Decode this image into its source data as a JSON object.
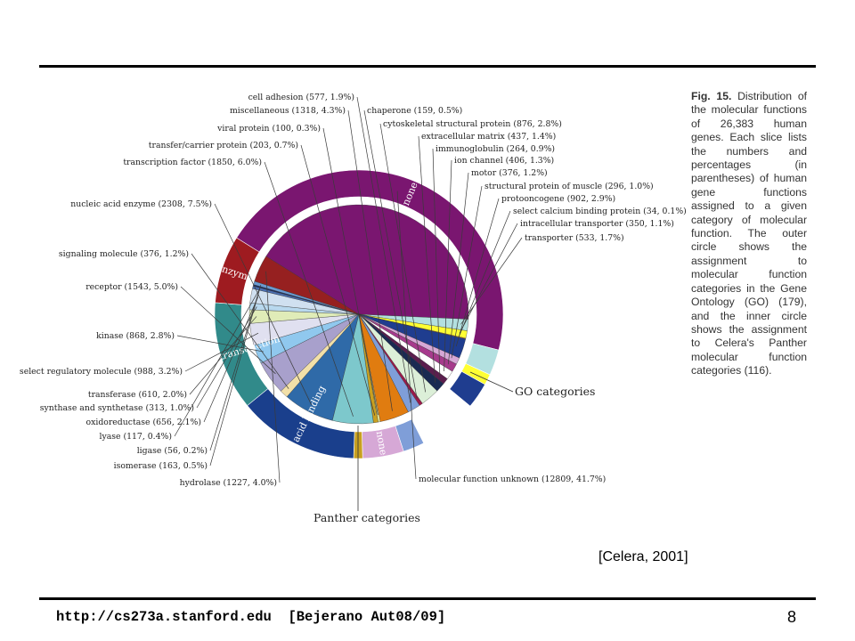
{
  "slide": {
    "caption_fig": "Fig. 15.",
    "caption_text": "Distribution of the molecular functions of 26,383 human genes. Each slice lists the numbers and percentages (in parentheses) of human gene functions assigned to a given category of molecular function. The outer circle shows the assignment to molecular function categories in the Gene Ontology (GO) (179), and the inner circle shows the assignment to Celera's Panther molecular function categories (116).",
    "citation": "[Celera, 2001]",
    "footer": "http://cs273a.stanford.edu  [Bejerano Aut08/09]",
    "page_number": "8"
  },
  "chart_data": {
    "type": "pie",
    "total_genes": 26383,
    "annotations": [
      "GO categories",
      "Panther categories"
    ],
    "slices": [
      {
        "label": "molecular function unknown (12809, 41.7%)",
        "value": 12809,
        "percent": 41.7,
        "color": "#7a1670"
      },
      {
        "label": "transporter (533, 1.7%)",
        "value": 533,
        "percent": 1.7,
        "color": "#b3e0e0"
      },
      {
        "label": "intracellular transporter (350, 1.1%)",
        "value": 350,
        "percent": 1.1,
        "color": "#ffff33"
      },
      {
        "label": "select calcium binding protein (34, 0.1%)",
        "value": 34,
        "percent": 0.1,
        "color": "#ff9933"
      },
      {
        "label": "protooncogene (902, 2.9%)",
        "value": 902,
        "percent": 2.9,
        "color": "#1f3d8f"
      },
      {
        "label": "structural protein of muscle (296, 1.0%)",
        "value": 296,
        "percent": 1.0,
        "color": "#d6a8d6"
      },
      {
        "label": "motor (376, 1.2%)",
        "value": 376,
        "percent": 1.2,
        "color": "#a63a8c"
      },
      {
        "label": "ion channel (406, 1.3%)",
        "value": 406,
        "percent": 1.3,
        "color": "#ffffff"
      },
      {
        "label": "immunoglobulin (264, 0.9%)",
        "value": 264,
        "percent": 0.9,
        "color": "#5b1e4e"
      },
      {
        "label": "extracellular matrix (437, 1.4%)",
        "value": 437,
        "percent": 1.4,
        "color": "#1a2a52"
      },
      {
        "label": "cytoskeletal structural protein (876, 2.8%)",
        "value": 876,
        "percent": 2.8,
        "color": "#dcefd8"
      },
      {
        "label": "chaperone (159, 0.5%)",
        "value": 159,
        "percent": 0.5,
        "color": "#9a1a4a"
      },
      {
        "label": "cell adhesion (577, 1.9%)",
        "value": 577,
        "percent": 1.9,
        "color": "#7f9ed8"
      },
      {
        "label": "miscellaneous (1318, 4.3%)",
        "value": 1318,
        "percent": 4.3,
        "color": "#e07c10"
      },
      {
        "label": "viral protein (100, 0.3%)",
        "value": 100,
        "percent": 0.3,
        "color": "#f3f39e"
      },
      {
        "label": "transfer/carrier protein (203, 0.7%)",
        "value": 203,
        "percent": 0.7,
        "color": "#c8a020"
      },
      {
        "label": "transcription factor (1850, 6.0%)",
        "value": 1850,
        "percent": 6.0,
        "color": "#7dc8cc"
      },
      {
        "label": "nucleic acid enzyme (2308, 7.5%)",
        "value": 2308,
        "percent": 7.5,
        "color": "#2f6aa8"
      },
      {
        "label": "signaling molecule (376, 1.2%)",
        "value": 376,
        "percent": 1.2,
        "color": "#f2e0a8"
      },
      {
        "label": "receptor (1543, 5.0%)",
        "value": 1543,
        "percent": 5.0,
        "color": "#a8a0cc"
      },
      {
        "label": "kinase (868, 2.8%)",
        "value": 868,
        "percent": 2.8,
        "color": "#90c8ee"
      },
      {
        "label": "select regulatory molecule (988, 3.2%)",
        "value": 988,
        "percent": 3.2,
        "color": "#e0e0f0"
      },
      {
        "label": "transferase (610, 2.0%)",
        "value": 610,
        "percent": 2.0,
        "color": "#e0ecb8"
      },
      {
        "label": "synthase and synthetase (313, 1.0%)",
        "value": 313,
        "percent": 1.0,
        "color": "#b8d8ee"
      },
      {
        "label": "oxidoreductase (656, 2.1%)",
        "value": 656,
        "percent": 2.1,
        "color": "#d0e0f0"
      },
      {
        "label": "lyase (117, 0.4%)",
        "value": 117,
        "percent": 0.4,
        "color": "#4a6eb0"
      },
      {
        "label": "ligase (56, 0.2%)",
        "value": 56,
        "percent": 0.2,
        "color": "#1a2a60"
      },
      {
        "label": "isomerase (163, 0.5%)",
        "value": 163,
        "percent": 0.5,
        "color": "#6a9ad0"
      },
      {
        "label": "hydrolase (1227, 4.0%)",
        "value": 1227,
        "percent": 4.0,
        "color": "#962020"
      }
    ],
    "go_categories": [
      {
        "label": "none",
        "percent": 45.1,
        "color": "#7a1670"
      },
      {
        "label": "",
        "percent": 2.9,
        "color": "#b3e0e0"
      },
      {
        "label": "",
        "percent": 1.2,
        "color": "#ffff33"
      },
      {
        "label": "",
        "percent": 2.9,
        "color": "#1f3d8f"
      },
      {
        "label": "",
        "percent": 6.6,
        "color": "#ffffff"
      },
      {
        "label": "",
        "percent": 2.4,
        "color": "#7f9ed8"
      },
      {
        "label": "none",
        "percent": 4.6,
        "color": "#d6a8d6"
      },
      {
        "label": "",
        "percent": 1.0,
        "color": "#c8a020"
      },
      {
        "label": "nucleic acid binding",
        "percent": 13.5,
        "color": "#1a3f8c"
      },
      {
        "label": "signal transduction",
        "percent": 12.2,
        "color": "#318a8a"
      },
      {
        "label": "enzyme",
        "percent": 7.6,
        "color": "#9e1b20"
      }
    ]
  }
}
